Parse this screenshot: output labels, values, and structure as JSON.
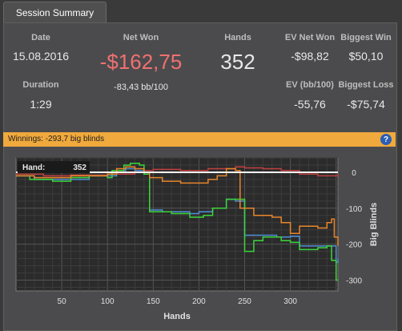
{
  "tabs": [
    {
      "label": "Session Summary"
    }
  ],
  "summary": {
    "date": {
      "label": "Date",
      "value": "15.08.2016"
    },
    "duration": {
      "label": "Duration",
      "value": "1:29"
    },
    "net_won": {
      "label": "Net Won",
      "value": "-$162,75",
      "sub": "-83,43 bb/100"
    },
    "hands": {
      "label": "Hands",
      "value": "352"
    },
    "ev_net_won": {
      "label": "EV Net Won",
      "value": "-$98,82"
    },
    "biggest_win": {
      "label": "Biggest Win",
      "value": "$50,10"
    },
    "ev_bb100": {
      "label": "EV (bb/100)",
      "value": "-55,76"
    },
    "biggest_loss": {
      "label": "Biggest Loss",
      "value": "-$75,74"
    }
  },
  "winnings_bar": {
    "text": "Winnings:  -293,7 big blinds",
    "help_icon": "help-icon"
  },
  "colors": {
    "net_won": "#f07070",
    "bar": "#f0a93c",
    "green": "#3cd63c",
    "blue": "#4f8fd6",
    "orange": "#e8862c",
    "red": "#c04040",
    "white": "#ffffff"
  },
  "chart_data": {
    "type": "line",
    "xlabel": "Hands",
    "ylabel": "Big Blinds",
    "xlim": [
      0,
      352
    ],
    "ylim": [
      -330,
      40
    ],
    "xticks": [
      50,
      100,
      150,
      200,
      250,
      300
    ],
    "yticks": [
      0,
      -100,
      -200,
      -300
    ],
    "grid": true,
    "tooltip": {
      "label": "Hand:",
      "value": "352"
    },
    "series": [
      {
        "color": "#c04040",
        "points": [
          [
            0,
            -5
          ],
          [
            30,
            -10
          ],
          [
            60,
            -8
          ],
          [
            100,
            -5
          ],
          [
            130,
            5
          ],
          [
            150,
            8
          ],
          [
            180,
            5
          ],
          [
            210,
            10
          ],
          [
            240,
            15
          ],
          [
            250,
            12
          ],
          [
            270,
            10
          ],
          [
            290,
            5
          ],
          [
            310,
            -5
          ],
          [
            330,
            -10
          ],
          [
            352,
            -5
          ]
        ]
      },
      {
        "color": "#4f8fd6",
        "points": [
          [
            0,
            -10
          ],
          [
            20,
            -20
          ],
          [
            50,
            -20
          ],
          [
            80,
            -10
          ],
          [
            100,
            -10
          ],
          [
            110,
            5
          ],
          [
            120,
            10
          ],
          [
            130,
            5
          ],
          [
            140,
            -5
          ],
          [
            146,
            -105
          ],
          [
            160,
            -110
          ],
          [
            190,
            -115
          ],
          [
            200,
            -110
          ],
          [
            215,
            -100
          ],
          [
            230,
            -75
          ],
          [
            240,
            -80
          ],
          [
            250,
            -175
          ],
          [
            265,
            -175
          ],
          [
            285,
            -180
          ],
          [
            300,
            -178
          ],
          [
            310,
            -205
          ],
          [
            330,
            -205
          ],
          [
            350,
            -250
          ],
          [
            352,
            -240
          ]
        ]
      },
      {
        "color": "#3cd63c",
        "points": [
          [
            0,
            -10
          ],
          [
            15,
            -20
          ],
          [
            40,
            -25
          ],
          [
            60,
            -15
          ],
          [
            80,
            -10
          ],
          [
            100,
            -15
          ],
          [
            105,
            5
          ],
          [
            118,
            20
          ],
          [
            125,
            25
          ],
          [
            135,
            20
          ],
          [
            140,
            -5
          ],
          [
            146,
            -110
          ],
          [
            155,
            -110
          ],
          [
            170,
            -115
          ],
          [
            190,
            -125
          ],
          [
            205,
            -120
          ],
          [
            215,
            -100
          ],
          [
            225,
            -100
          ],
          [
            230,
            -75
          ],
          [
            240,
            -75
          ],
          [
            250,
            -220
          ],
          [
            260,
            -190
          ],
          [
            270,
            -180
          ],
          [
            290,
            -190
          ],
          [
            300,
            -195
          ],
          [
            310,
            -215
          ],
          [
            330,
            -210
          ],
          [
            340,
            -205
          ],
          [
            345,
            -245
          ],
          [
            350,
            -300
          ],
          [
            352,
            -300
          ]
        ]
      },
      {
        "color": "#e8862c",
        "points": [
          [
            0,
            -10
          ],
          [
            20,
            -15
          ],
          [
            60,
            -10
          ],
          [
            100,
            -5
          ],
          [
            110,
            10
          ],
          [
            120,
            15
          ],
          [
            130,
            10
          ],
          [
            140,
            0
          ],
          [
            146,
            -15
          ],
          [
            160,
            -25
          ],
          [
            180,
            -30
          ],
          [
            200,
            -30
          ],
          [
            210,
            -20
          ],
          [
            220,
            -10
          ],
          [
            230,
            10
          ],
          [
            240,
            5
          ],
          [
            245,
            -100
          ],
          [
            260,
            -120
          ],
          [
            280,
            -125
          ],
          [
            290,
            -140
          ],
          [
            300,
            -170
          ],
          [
            310,
            -150
          ],
          [
            330,
            -155
          ],
          [
            340,
            -140
          ],
          [
            345,
            -130
          ],
          [
            348,
            -180
          ],
          [
            352,
            -205
          ]
        ]
      },
      {
        "color": "#ffffff",
        "points": [
          [
            0,
            0
          ],
          [
            352,
            0
          ]
        ]
      }
    ]
  }
}
